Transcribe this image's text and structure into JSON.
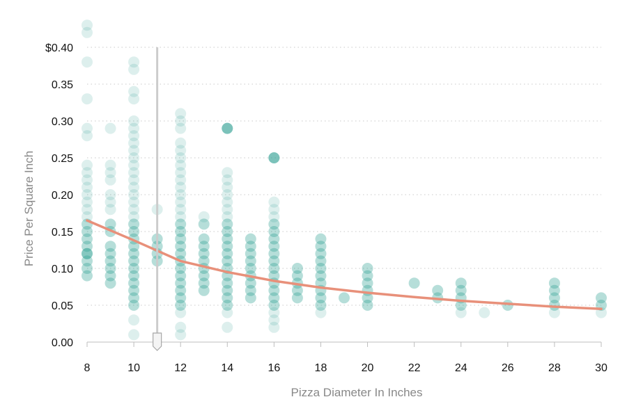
{
  "chart_data": {
    "type": "scatter",
    "xlabel": "Pizza Diameter In Inches",
    "ylabel": "Price Per Square Inch",
    "xlim": [
      8,
      30
    ],
    "ylim": [
      0,
      0.4
    ],
    "x_ticks": [
      "8",
      "10",
      "12",
      "14",
      "16",
      "18",
      "20",
      "22",
      "24",
      "26",
      "28",
      "30"
    ],
    "y_ticks": [
      "0.00",
      "0.05",
      "0.10",
      "0.15",
      "0.20",
      "0.25",
      "0.30",
      "0.35",
      "$0.40"
    ],
    "grid": "horizontal dotted",
    "marker_value_x": 11,
    "colors": {
      "points": "#2a9d8f",
      "trend": "#e8907a",
      "marker": "#cccccc"
    },
    "columns": [
      {
        "x": 8,
        "y": [
          0.09,
          0.1,
          0.11,
          0.12,
          0.12,
          0.13,
          0.14,
          0.15,
          0.16,
          0.17,
          0.18,
          0.19,
          0.2,
          0.21,
          0.22,
          0.23,
          0.24,
          0.28,
          0.29,
          0.33,
          0.38,
          0.42,
          0.43
        ]
      },
      {
        "x": 9,
        "y": [
          0.08,
          0.09,
          0.1,
          0.11,
          0.12,
          0.13,
          0.15,
          0.16,
          0.18,
          0.19,
          0.2,
          0.22,
          0.23,
          0.24,
          0.29
        ]
      },
      {
        "x": 10,
        "y": [
          0.01,
          0.03,
          0.05,
          0.06,
          0.07,
          0.08,
          0.09,
          0.1,
          0.11,
          0.12,
          0.13,
          0.14,
          0.15,
          0.16,
          0.17,
          0.18,
          0.19,
          0.2,
          0.21,
          0.22,
          0.23,
          0.24,
          0.25,
          0.26,
          0.27,
          0.28,
          0.29,
          0.3,
          0.33,
          0.34,
          0.37,
          0.38
        ]
      },
      {
        "x": 11,
        "y": [
          0.11,
          0.12,
          0.13,
          0.14,
          0.18
        ]
      },
      {
        "x": 12,
        "y": [
          0.01,
          0.02,
          0.04,
          0.05,
          0.06,
          0.07,
          0.08,
          0.09,
          0.1,
          0.11,
          0.12,
          0.13,
          0.14,
          0.15,
          0.16,
          0.17,
          0.18,
          0.19,
          0.2,
          0.21,
          0.22,
          0.23,
          0.24,
          0.25,
          0.26,
          0.27,
          0.29,
          0.3,
          0.31
        ]
      },
      {
        "x": 13,
        "y": [
          0.07,
          0.08,
          0.09,
          0.1,
          0.11,
          0.12,
          0.13,
          0.14,
          0.16,
          0.17
        ]
      },
      {
        "x": 14,
        "y": [
          0.02,
          0.04,
          0.05,
          0.06,
          0.07,
          0.08,
          0.09,
          0.1,
          0.11,
          0.12,
          0.13,
          0.14,
          0.15,
          0.16,
          0.17,
          0.18,
          0.19,
          0.2,
          0.21,
          0.22,
          0.23,
          0.29
        ]
      },
      {
        "x": 15,
        "y": [
          0.06,
          0.07,
          0.08,
          0.09,
          0.1,
          0.11,
          0.12,
          0.13,
          0.14
        ]
      },
      {
        "x": 16,
        "y": [
          0.02,
          0.03,
          0.04,
          0.05,
          0.06,
          0.07,
          0.08,
          0.09,
          0.1,
          0.11,
          0.12,
          0.13,
          0.14,
          0.15,
          0.16,
          0.17,
          0.18,
          0.19,
          0.25
        ]
      },
      {
        "x": 17,
        "y": [
          0.06,
          0.07,
          0.08,
          0.09,
          0.1
        ]
      },
      {
        "x": 18,
        "y": [
          0.04,
          0.05,
          0.06,
          0.07,
          0.08,
          0.09,
          0.1,
          0.11,
          0.12,
          0.13,
          0.14
        ]
      },
      {
        "x": 19,
        "y": [
          0.06
        ]
      },
      {
        "x": 20,
        "y": [
          0.05,
          0.06,
          0.07,
          0.08,
          0.09,
          0.1
        ]
      },
      {
        "x": 22,
        "y": [
          0.08
        ]
      },
      {
        "x": 23,
        "y": [
          0.06,
          0.07
        ]
      },
      {
        "x": 24,
        "y": [
          0.04,
          0.05,
          0.06,
          0.07,
          0.08
        ]
      },
      {
        "x": 25,
        "y": [
          0.04
        ]
      },
      {
        "x": 26,
        "y": [
          0.05
        ]
      },
      {
        "x": 28,
        "y": [
          0.04,
          0.05,
          0.06,
          0.07,
          0.08
        ]
      },
      {
        "x": 30,
        "y": [
          0.04,
          0.05,
          0.06
        ]
      }
    ],
    "highlighted_points": [
      {
        "x": 14,
        "y": 0.29
      },
      {
        "x": 16,
        "y": 0.25
      }
    ],
    "trend_line": {
      "type": "power",
      "points": [
        {
          "x": 8,
          "y": 0.165
        },
        {
          "x": 10,
          "y": 0.138
        },
        {
          "x": 12,
          "y": 0.11
        },
        {
          "x": 14,
          "y": 0.095
        },
        {
          "x": 16,
          "y": 0.083
        },
        {
          "x": 18,
          "y": 0.074
        },
        {
          "x": 20,
          "y": 0.067
        },
        {
          "x": 22,
          "y": 0.061
        },
        {
          "x": 24,
          "y": 0.056
        },
        {
          "x": 26,
          "y": 0.052
        },
        {
          "x": 28,
          "y": 0.048
        },
        {
          "x": 30,
          "y": 0.045
        }
      ]
    }
  }
}
